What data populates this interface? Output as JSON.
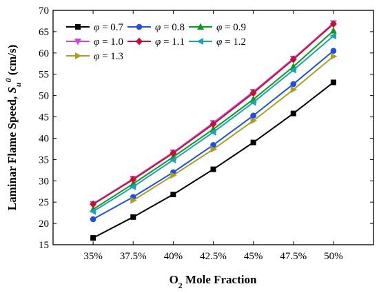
{
  "chart_data": {
    "type": "line",
    "xlabel": "O2 Mole Fraction",
    "ylabel": "Laminar Flame Speed, Su0 (cm/s)",
    "categories": [
      "35%",
      "37.5%",
      "40%",
      "42.5%",
      "45%",
      "47.5%",
      "50%"
    ],
    "ylim": [
      15,
      70
    ],
    "yticks": [
      15,
      20,
      25,
      30,
      35,
      40,
      45,
      50,
      55,
      60,
      65,
      70
    ],
    "grid": false,
    "legend_position": "top-left",
    "series": [
      {
        "name": "φ = 0.7",
        "phi": "0.7",
        "color": "#000000",
        "marker": "square",
        "values": [
          16.6,
          21.5,
          26.8,
          32.7,
          39.0,
          45.8,
          53.1
        ]
      },
      {
        "name": "φ = 0.8",
        "phi": "0.8",
        "color": "#1f4fe0",
        "marker": "circle",
        "values": [
          21.0,
          26.2,
          32.0,
          38.4,
          45.3,
          52.7,
          60.5
        ]
      },
      {
        "name": "φ = 0.9",
        "phi": "0.9",
        "color": "#0a9a1e",
        "marker": "triangle-up",
        "values": [
          23.3,
          29.3,
          35.6,
          42.1,
          49.1,
          56.8,
          65.2
        ]
      },
      {
        "name": "φ = 1.0",
        "phi": "1.0",
        "color": "#d040e8",
        "marker": "triangle-down",
        "values": [
          24.6,
          30.5,
          36.7,
          43.6,
          50.9,
          58.7,
          67.0
        ]
      },
      {
        "name": "φ = 1.1",
        "phi": "1.1",
        "color": "#c8102e",
        "marker": "diamond",
        "values": [
          24.5,
          30.3,
          36.5,
          43.3,
          50.6,
          58.5,
          66.8
        ]
      },
      {
        "name": "φ = 1.2",
        "phi": "1.2",
        "color": "#1aa2b8",
        "marker": "triangle-left",
        "values": [
          22.8,
          28.6,
          34.9,
          41.4,
          48.4,
          56.0,
          64.0
        ]
      },
      {
        "name": "φ = 1.3",
        "phi": "1.3",
        "color": "#a8a020",
        "marker": "triangle-right",
        "values": [
          null,
          25.4,
          31.3,
          37.4,
          44.1,
          51.4,
          59.2
        ]
      }
    ]
  }
}
